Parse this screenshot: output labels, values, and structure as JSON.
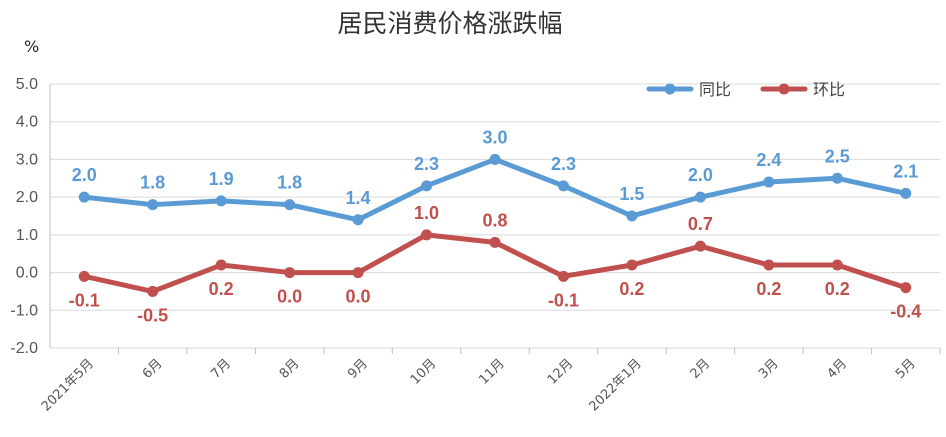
{
  "colors": {
    "yoy": "#5B9BD5",
    "mom": "#C0504D",
    "grid": "#D9D9D9",
    "axis": "#BFBFBF"
  },
  "chart_data": {
    "type": "line",
    "title": "居民消费价格涨跌幅",
    "ylabel": "%",
    "categories": [
      "2021年5月",
      "6月",
      "7月",
      "8月",
      "9月",
      "10月",
      "11月",
      "12月",
      "2022年1月",
      "2月",
      "3月",
      "4月",
      "5月"
    ],
    "yticks": [
      "5.0",
      "4.0",
      "3.0",
      "2.0",
      "1.0",
      "0.0",
      "-1.0",
      "-2.0"
    ],
    "ylim": [
      -2,
      5
    ],
    "grid": true,
    "legend_position": "top-right",
    "series": [
      {
        "name": "同比",
        "color": "#5B9BD5",
        "values": [
          2.0,
          1.8,
          1.9,
          1.8,
          1.4,
          2.3,
          3.0,
          2.3,
          1.5,
          2.0,
          2.4,
          2.5,
          2.1
        ],
        "labels": [
          "2.0",
          "1.8",
          "1.9",
          "1.8",
          "1.4",
          "2.3",
          "3.0",
          "2.3",
          "1.5",
          "2.0",
          "2.4",
          "2.5",
          "2.1"
        ]
      },
      {
        "name": "环比",
        "color": "#C0504D",
        "values": [
          -0.1,
          -0.5,
          0.2,
          0.0,
          0.0,
          1.0,
          0.8,
          -0.1,
          0.2,
          0.7,
          0.2,
          0.2,
          -0.4
        ],
        "labels": [
          "-0.1",
          "-0.5",
          "0.2",
          "0.0",
          "0.0",
          "1.0",
          "0.8",
          "-0.1",
          "0.2",
          "0.7",
          "0.2",
          "0.2",
          "-0.4"
        ]
      }
    ]
  }
}
